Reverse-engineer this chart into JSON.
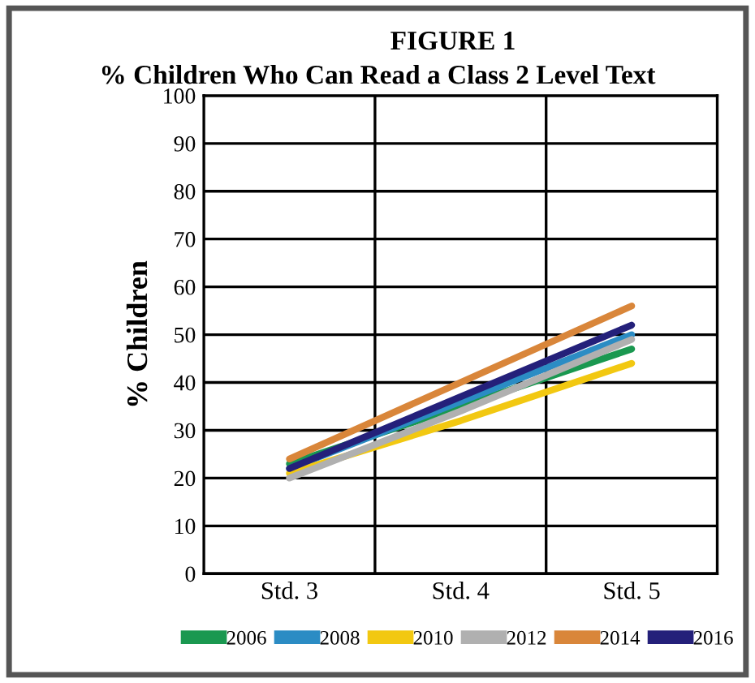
{
  "chart_data": {
    "type": "line",
    "title": "FIGURE 1",
    "subtitle": "% Children Who Can Read a Class 2 Level Text",
    "ylabel": "% Children",
    "categories": [
      "Std. 3",
      "Std. 4",
      "Std. 5"
    ],
    "series": [
      {
        "name": "2006",
        "color": "#1a9850",
        "values": [
          23,
          35,
          47
        ]
      },
      {
        "name": "2008",
        "color": "#2b8cc4",
        "values": [
          22,
          36,
          50
        ]
      },
      {
        "name": "2010",
        "color": "#f2c811",
        "values": [
          21,
          32,
          44
        ]
      },
      {
        "name": "2012",
        "color": "#b0b0b0",
        "values": [
          20,
          34,
          49
        ]
      },
      {
        "name": "2014",
        "color": "#d9863a",
        "values": [
          24,
          40,
          56
        ]
      },
      {
        "name": "2016",
        "color": "#24207a",
        "values": [
          22,
          37,
          52
        ]
      }
    ],
    "ylim": [
      0,
      100
    ],
    "yticks": [
      0,
      10,
      20,
      30,
      40,
      50,
      60,
      70,
      80,
      90,
      100
    ],
    "grid": true,
    "legend": "bottom",
    "marker": "none",
    "line_style": "solid"
  }
}
